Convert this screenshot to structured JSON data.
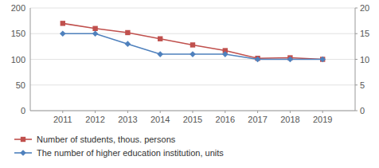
{
  "chart_data": {
    "type": "line",
    "x": [
      2011,
      2012,
      2013,
      2014,
      2015,
      2016,
      2017,
      2018,
      2019
    ],
    "xlim": [
      2010,
      2020
    ],
    "xticks": [
      2011,
      2012,
      2013,
      2014,
      2015,
      2016,
      2017,
      2018,
      2019
    ],
    "series": [
      {
        "name": "Number of students, thous. persons",
        "color": "#c0504d",
        "marker": "square",
        "values": [
          170,
          160,
          152,
          140,
          128,
          117,
          102,
          103,
          100
        ]
      },
      {
        "name": "The number of higher education institution, units",
        "color": "#4f81bd",
        "marker": "diamond",
        "axis": "y2",
        "values": [
          15,
          15,
          13,
          11,
          11,
          11,
          10,
          10,
          10
        ]
      }
    ],
    "ylim": [
      0,
      200
    ],
    "yticks": [
      0,
      50,
      100,
      150,
      200
    ],
    "y2lim": [
      0,
      20
    ],
    "y2ticks": [
      0,
      5,
      10,
      15,
      20
    ],
    "grid": true,
    "legend": "bottom"
  }
}
